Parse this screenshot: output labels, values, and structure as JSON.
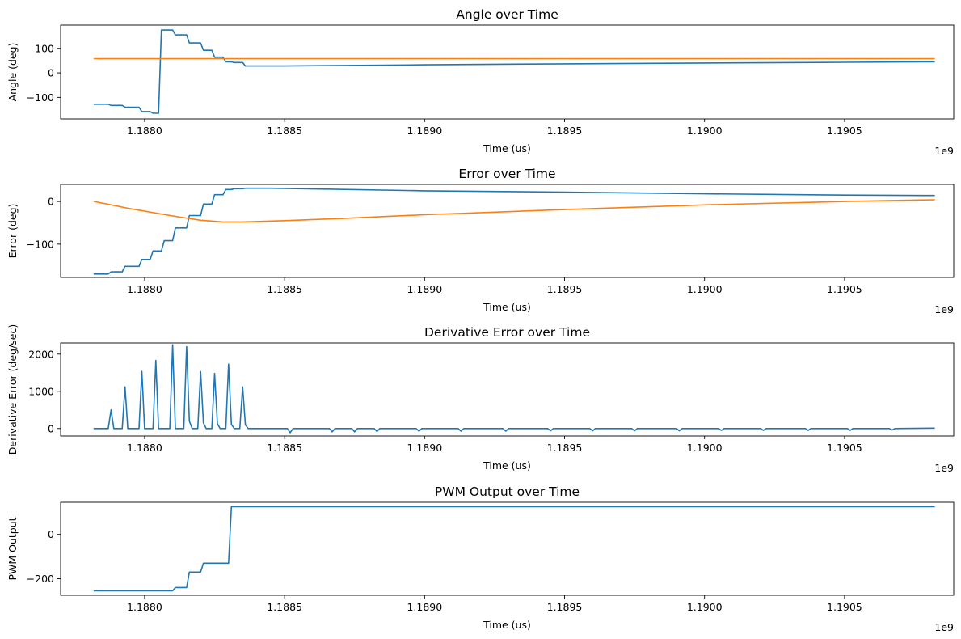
{
  "figure": {
    "colors": {
      "blue": "#1f77b4",
      "orange": "#ff7f0e",
      "axes": "#000000"
    },
    "xaxis": {
      "range": [
        1.1877,
        1.19089
      ],
      "ticks": [
        1.188,
        1.1885,
        1.189,
        1.1895,
        1.19,
        1.1905
      ],
      "tick_labels": [
        "1.1880",
        "1.1885",
        "1.1890",
        "1.1895",
        "1.1900",
        "1.1905"
      ],
      "offset_label": "1e9"
    }
  },
  "chart_data": [
    {
      "type": "line",
      "title": "Angle over Time",
      "xlabel": "Time (us)",
      "ylabel": "Angle (deg)",
      "ylim": [
        -188,
        195
      ],
      "yticks": [
        -100,
        0,
        100
      ],
      "ytick_labels": [
        "−100",
        "0",
        "100"
      ],
      "series": [
        {
          "name": "angle",
          "color": "#1f77b4",
          "x": [
            1.18782,
            1.18787,
            1.18788,
            1.18792,
            1.18793,
            1.18798,
            1.18799,
            1.18802,
            1.18803,
            1.18805,
            1.18806,
            1.1881,
            1.18811,
            1.18815,
            1.18816,
            1.1882,
            1.18821,
            1.18824,
            1.18825,
            1.18828,
            1.18829,
            1.18831,
            1.18832,
            1.18835,
            1.18836,
            1.1885,
            1.189,
            1.1895,
            1.19,
            1.1905,
            1.19082
          ],
          "y": [
            -128,
            -128,
            -133,
            -133,
            -140,
            -140,
            -158,
            -158,
            -165,
            -165,
            175,
            175,
            155,
            155,
            122,
            122,
            92,
            92,
            64,
            64,
            45,
            45,
            42,
            42,
            28,
            28,
            33,
            37,
            40,
            43,
            45
          ]
        },
        {
          "name": "target",
          "color": "#ff7f0e",
          "x": [
            1.18782,
            1.19082
          ],
          "y": [
            58,
            58
          ]
        }
      ]
    },
    {
      "type": "line",
      "title": "Error over Time",
      "xlabel": "Time (us)",
      "ylabel": "Error (deg)",
      "ylim": [
        -178,
        40
      ],
      "yticks": [
        -100,
        0
      ],
      "ytick_labels": [
        "−100",
        "0"
      ],
      "series": [
        {
          "name": "error",
          "color": "#1f77b4",
          "x": [
            1.18782,
            1.18787,
            1.18788,
            1.18792,
            1.18793,
            1.18798,
            1.18799,
            1.18802,
            1.18803,
            1.18806,
            1.18807,
            1.1881,
            1.18811,
            1.18815,
            1.18816,
            1.1882,
            1.18821,
            1.18824,
            1.18825,
            1.18828,
            1.18829,
            1.18831,
            1.18832,
            1.18835,
            1.18836,
            1.18845,
            1.189,
            1.1895,
            1.19,
            1.1905,
            1.19082
          ],
          "y": [
            -170,
            -170,
            -165,
            -165,
            -152,
            -152,
            -136,
            -136,
            -116,
            -116,
            -92,
            -92,
            -62,
            -62,
            -33,
            -33,
            -6,
            -6,
            16,
            16,
            28,
            28,
            30,
            30,
            31,
            31,
            25,
            22,
            18,
            15,
            14
          ]
        },
        {
          "name": "error_reference",
          "color": "#ff7f0e",
          "x": [
            1.18782,
            1.18795,
            1.1881,
            1.1882,
            1.18828,
            1.18835,
            1.1885,
            1.1887,
            1.189,
            1.1895,
            1.19,
            1.1905,
            1.19082
          ],
          "y": [
            0,
            -17,
            -34,
            -44,
            -48,
            -48,
            -45,
            -40,
            -31,
            -19,
            -8,
            0,
            4
          ]
        }
      ]
    },
    {
      "type": "line",
      "title": "Derivative Error over Time",
      "xlabel": "Time (us)",
      "ylabel": "Derivative Error (deg/sec)",
      "ylim": [
        -200,
        2300
      ],
      "yticks": [
        0,
        1000,
        2000
      ],
      "ytick_labels": [
        "0",
        "1000",
        "2000"
      ],
      "series": [
        {
          "name": "derivative_error",
          "color": "#1f77b4",
          "x": [
            1.18782,
            1.18787,
            1.18788,
            1.18789,
            1.18792,
            1.18793,
            1.18794,
            1.18798,
            1.18799,
            1.188,
            1.18803,
            1.18804,
            1.18805,
            1.18809,
            1.1881,
            1.18811,
            1.18814,
            1.18815,
            1.18816,
            1.18817,
            1.18819,
            1.1882,
            1.18821,
            1.18822,
            1.18824,
            1.18825,
            1.18826,
            1.18827,
            1.18829,
            1.1883,
            1.18831,
            1.18832,
            1.18834,
            1.18835,
            1.18836,
            1.18837,
            1.18839,
            1.18851,
            1.18852,
            1.18853,
            1.18866,
            1.18867,
            1.18868,
            1.18874,
            1.18875,
            1.18876,
            1.18882,
            1.18883,
            1.18884,
            1.18897,
            1.18898,
            1.18899,
            1.18912,
            1.18913,
            1.18914,
            1.18928,
            1.18929,
            1.1893,
            1.18944,
            1.18945,
            1.18946,
            1.18959,
            1.1896,
            1.18961,
            1.18974,
            1.18975,
            1.18976,
            1.1899,
            1.18991,
            1.18992,
            1.19005,
            1.19006,
            1.19007,
            1.1902,
            1.19021,
            1.19022,
            1.19036,
            1.19037,
            1.19038,
            1.19051,
            1.19052,
            1.19053,
            1.19066,
            1.19067,
            1.19068,
            1.19082
          ],
          "y": [
            0,
            0,
            500,
            0,
            0,
            1120,
            0,
            0,
            1540,
            0,
            0,
            1830,
            0,
            0,
            2250,
            0,
            0,
            2200,
            200,
            0,
            0,
            1530,
            150,
            0,
            0,
            1480,
            130,
            0,
            0,
            1730,
            110,
            0,
            0,
            1120,
            100,
            0,
            0,
            0,
            -110,
            0,
            0,
            -90,
            0,
            0,
            -90,
            0,
            0,
            -80,
            0,
            0,
            -70,
            0,
            0,
            -70,
            0,
            0,
            -70,
            0,
            0,
            -60,
            0,
            0,
            -60,
            0,
            0,
            -60,
            0,
            0,
            -60,
            0,
            0,
            -50,
            0,
            0,
            -50,
            0,
            0,
            -50,
            0,
            0,
            -50,
            0,
            0,
            -40,
            0,
            10
          ]
        }
      ]
    },
    {
      "type": "line",
      "title": "PWM Output over Time",
      "xlabel": "Time (us)",
      "ylabel": "PWM Output",
      "ylim": [
        -275,
        145
      ],
      "yticks": [
        -200,
        0
      ],
      "ytick_labels": [
        "−200",
        "0"
      ],
      "series": [
        {
          "name": "pwm",
          "color": "#1f77b4",
          "x": [
            1.18782,
            1.1881,
            1.18811,
            1.18815,
            1.18816,
            1.1882,
            1.18821,
            1.1883,
            1.18831,
            1.19082
          ],
          "y": [
            -255,
            -255,
            -240,
            -240,
            -170,
            -170,
            -130,
            -130,
            125,
            125
          ]
        }
      ]
    }
  ]
}
